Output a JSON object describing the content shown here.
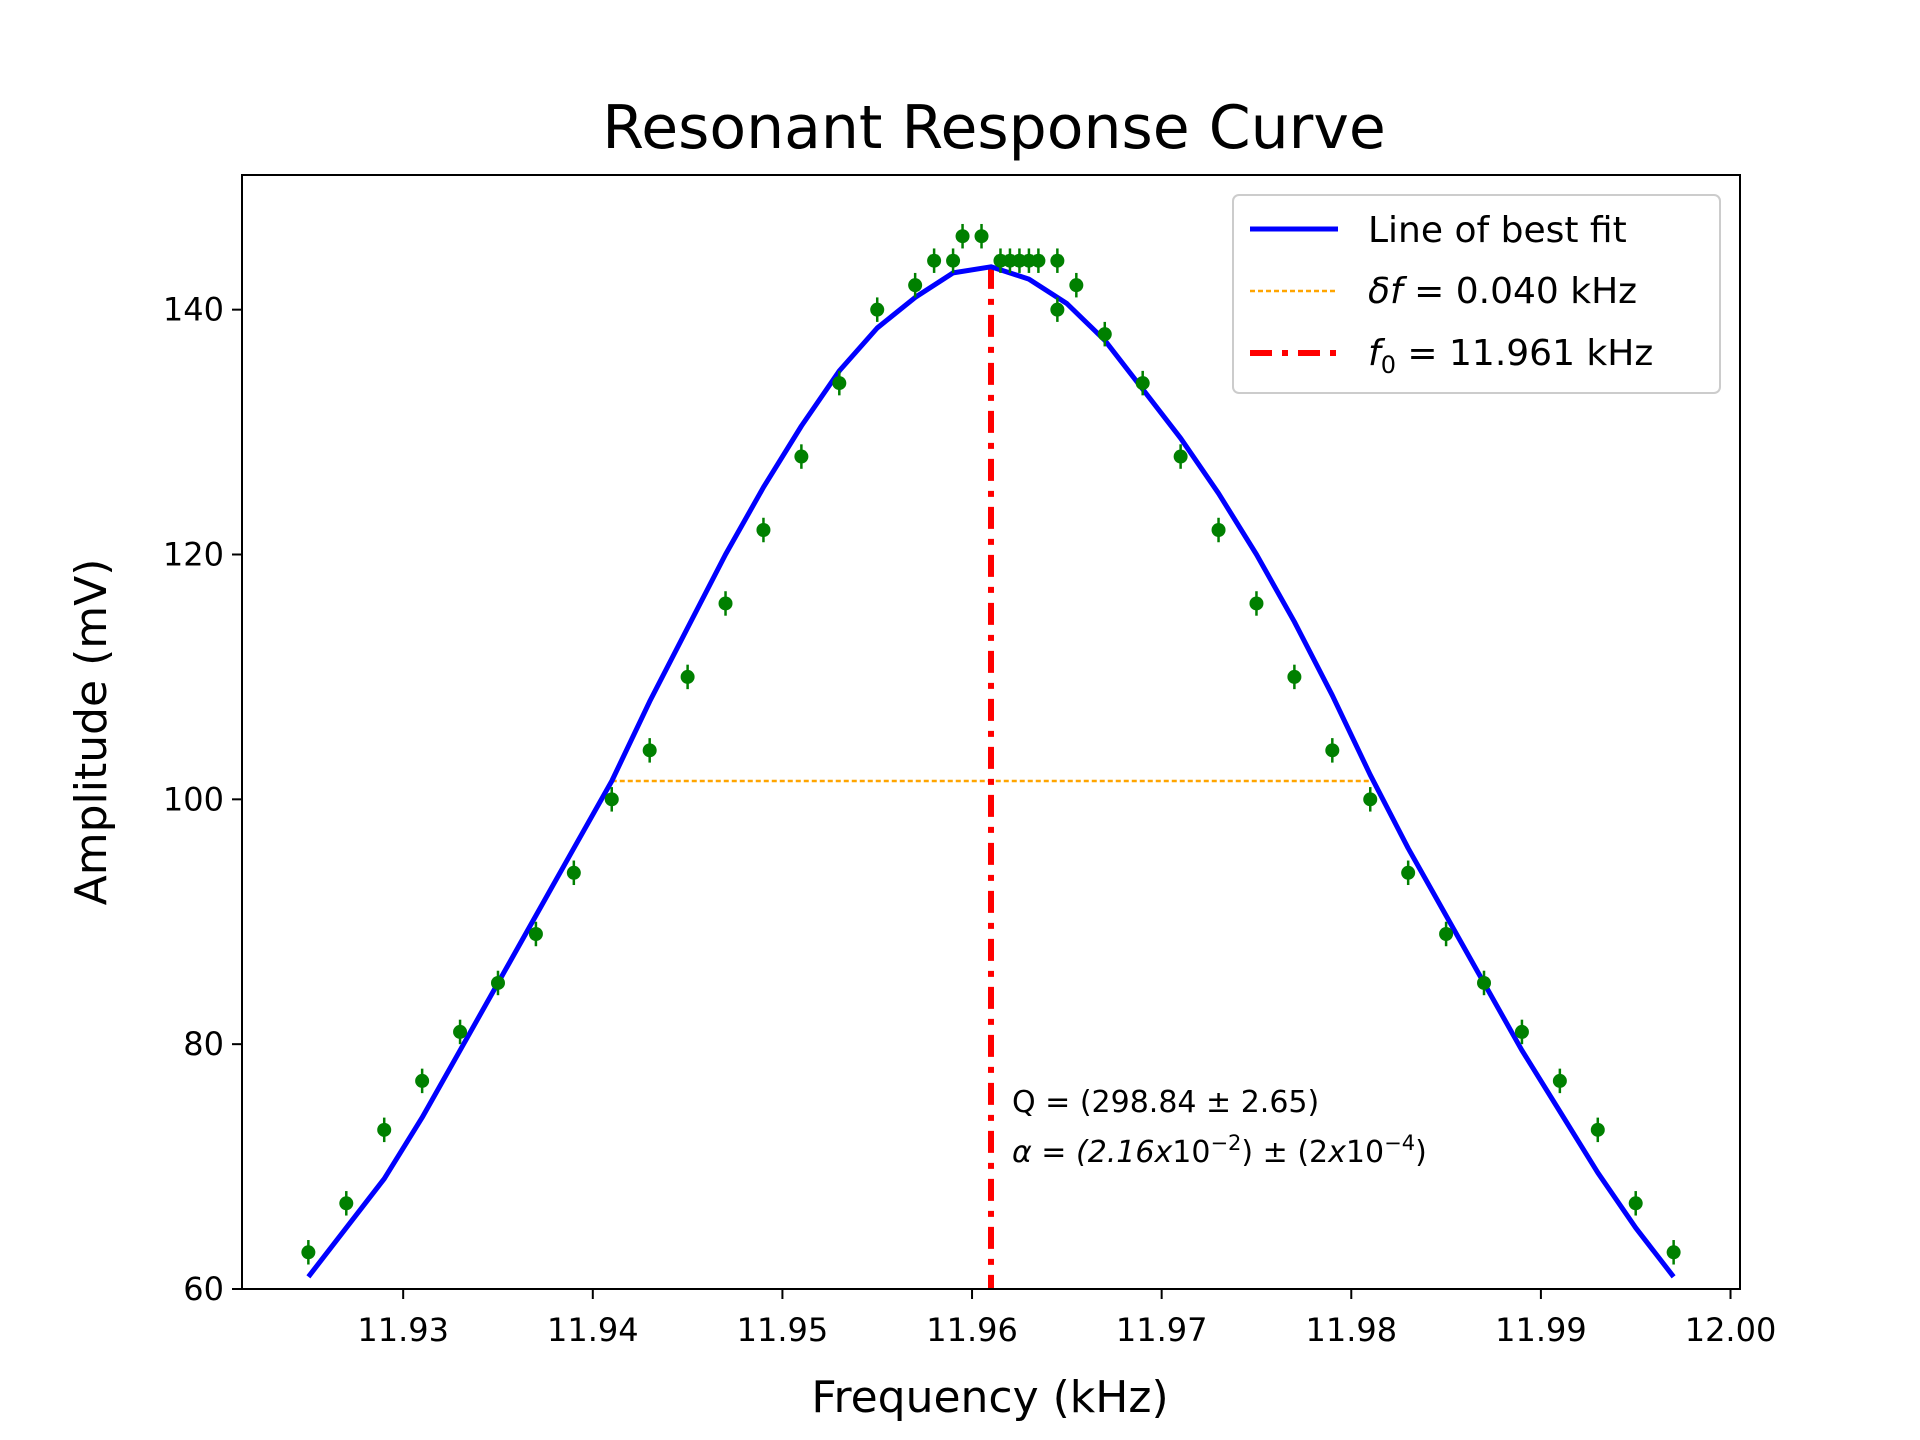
{
  "chart_data": {
    "type": "scatter",
    "title": "Resonant Response Curve",
    "xlabel": "Frequency (kHz)",
    "ylabel": "Amplitude (mV)",
    "xlim": [
      11.9215,
      12.0005
    ],
    "ylim": [
      60,
      151
    ],
    "xticks": [
      "11.93",
      "11.94",
      "11.95",
      "11.96",
      "11.97",
      "11.98",
      "11.99",
      "12.00"
    ],
    "yticks": [
      "60",
      "80",
      "100",
      "120",
      "140"
    ],
    "grid": false,
    "legend_position": "top-right",
    "legend": [
      {
        "label": "Line of best fit"
      },
      {
        "label_symbol": "δf",
        "label_rest": " = 0.040 kHz"
      },
      {
        "label_symbol": "f",
        "label_sub": "0",
        "label_rest": " = 11.961 kHz"
      }
    ],
    "annotations": {
      "line1": "Q = (298.84 ± 2.65)",
      "line2_prefix": "α = (2.16",
      "line2_x1": "x",
      "line2_10a": "10",
      "line2_exp1": "−2",
      "line2_mid": ") ± (2",
      "line2_x2": "x",
      "line2_10b": "10",
      "line2_exp2": "−4",
      "line2_suffix": ")"
    },
    "colors": {
      "fit": "#0000ff",
      "points": "#008000",
      "fwhm": "#ffa500",
      "f0": "#ff0000"
    },
    "f0": 11.961,
    "fwhm": {
      "x_start": 11.941,
      "x_end": 11.981,
      "y": 101.5
    },
    "fit_peak": {
      "x": 11.961,
      "y": 143.5
    },
    "fit_curve": {
      "x": [
        11.925,
        11.929,
        11.931,
        11.933,
        11.935,
        11.937,
        11.939,
        11.941,
        11.943,
        11.945,
        11.947,
        11.949,
        11.951,
        11.953,
        11.955,
        11.957,
        11.959,
        11.961,
        11.963,
        11.965,
        11.967,
        11.969,
        11.971,
        11.973,
        11.975,
        11.977,
        11.979,
        11.981,
        11.983,
        11.985,
        11.987,
        11.989,
        11.991,
        11.993,
        11.995,
        11.997
      ],
      "y": [
        61,
        69,
        74,
        79.5,
        85,
        90.5,
        96,
        101.5,
        108,
        114,
        120,
        125.5,
        130.5,
        135,
        138.5,
        141,
        143,
        143.5,
        142.5,
        140.5,
        137.5,
        133.5,
        129.5,
        125,
        120,
        114.5,
        108.5,
        102,
        96,
        90.5,
        85,
        79.5,
        74.5,
        69.5,
        65,
        61
      ]
    },
    "series": [
      {
        "name": "data",
        "x": [
          11.925,
          11.927,
          11.929,
          11.931,
          11.933,
          11.935,
          11.937,
          11.939,
          11.941,
          11.943,
          11.945,
          11.947,
          11.949,
          11.951,
          11.953,
          11.955,
          11.957,
          11.958,
          11.959,
          11.9595,
          11.9605,
          11.9615,
          11.962,
          11.9625,
          11.963,
          11.9635,
          11.9645,
          11.9655,
          11.9645,
          11.967,
          11.969,
          11.971,
          11.973,
          11.975,
          11.977,
          11.979,
          11.981,
          11.983,
          11.985,
          11.987,
          11.989,
          11.991,
          11.993,
          11.995,
          11.997
        ],
        "y": [
          63,
          67,
          73,
          77,
          81,
          85,
          89,
          94,
          100,
          104,
          110,
          116,
          122,
          128,
          134,
          140,
          142,
          144,
          144,
          146,
          146,
          144,
          144,
          144,
          144,
          144,
          144,
          142,
          140,
          138,
          134,
          128,
          122,
          116,
          110,
          104,
          100,
          94,
          89,
          85,
          81,
          77,
          73,
          67,
          63
        ],
        "yerr": 1.0
      }
    ]
  }
}
